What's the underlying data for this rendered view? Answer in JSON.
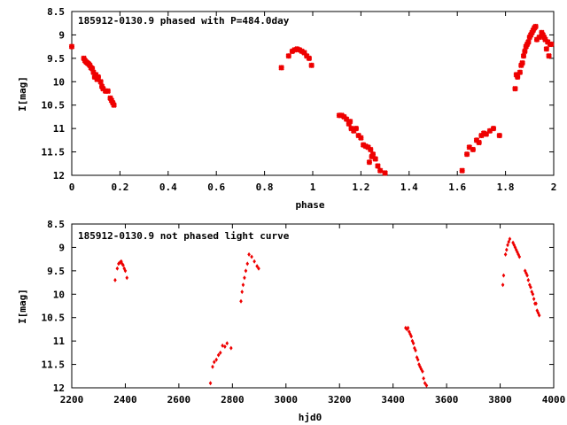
{
  "chart_data": [
    {
      "type": "scatter",
      "title": "185912-0130.9 phased with P=484.0day",
      "xlabel": "phase",
      "ylabel": "I[mag]",
      "xlim": [
        0,
        2
      ],
      "ylim": [
        8.5,
        12
      ],
      "y_inverted": true,
      "grid": false,
      "marker": "plus-cross",
      "color": "#ee0000",
      "xticks": [
        0,
        0.2,
        0.4,
        0.6,
        0.8,
        1,
        1.2,
        1.4,
        1.6,
        1.8,
        2
      ],
      "xtick_labels": [
        "0",
        "0.2",
        "0.4",
        "0.6",
        "0.8",
        "1",
        "1.2",
        "1.4",
        "1.6",
        "1.8",
        "2"
      ],
      "yticks": [
        8.5,
        9,
        9.5,
        10,
        10.5,
        11,
        11.5,
        12
      ],
      "ytick_labels": [
        "8.5",
        "9",
        "9.5",
        "10",
        "10.5",
        "11",
        "11.5",
        "12"
      ],
      "series": [
        {
          "points": [
            [
              0.0,
              9.25
            ],
            [
              0.05,
              9.5
            ],
            [
              0.055,
              9.55
            ],
            [
              0.06,
              9.58
            ],
            [
              0.065,
              9.6
            ],
            [
              0.07,
              9.62
            ],
            [
              0.075,
              9.65
            ],
            [
              0.08,
              9.7
            ],
            [
              0.085,
              9.72
            ],
            [
              0.09,
              9.8
            ],
            [
              0.095,
              9.9
            ],
            [
              0.1,
              9.85
            ],
            [
              0.105,
              9.95
            ],
            [
              0.11,
              9.9
            ],
            [
              0.12,
              10.0
            ],
            [
              0.125,
              10.1
            ],
            [
              0.13,
              10.15
            ],
            [
              0.14,
              10.2
            ],
            [
              0.15,
              10.2
            ],
            [
              0.16,
              10.35
            ],
            [
              0.165,
              10.4
            ],
            [
              0.17,
              10.45
            ],
            [
              0.175,
              10.5
            ],
            [
              0.87,
              9.7
            ],
            [
              0.9,
              9.45
            ],
            [
              0.915,
              9.35
            ],
            [
              0.925,
              9.32
            ],
            [
              0.935,
              9.3
            ],
            [
              0.945,
              9.32
            ],
            [
              0.955,
              9.35
            ],
            [
              0.965,
              9.38
            ],
            [
              0.975,
              9.45
            ],
            [
              0.985,
              9.5
            ],
            [
              0.995,
              9.65
            ],
            [
              1.11,
              10.72
            ],
            [
              1.12,
              10.72
            ],
            [
              1.13,
              10.75
            ],
            [
              1.14,
              10.8
            ],
            [
              1.15,
              10.9
            ],
            [
              1.155,
              10.85
            ],
            [
              1.16,
              11.0
            ],
            [
              1.17,
              11.05
            ],
            [
              1.18,
              11.0
            ],
            [
              1.19,
              11.15
            ],
            [
              1.2,
              11.2
            ],
            [
              1.21,
              11.35
            ],
            [
              1.22,
              11.38
            ],
            [
              1.23,
              11.4
            ],
            [
              1.24,
              11.45
            ],
            [
              1.245,
              11.6
            ],
            [
              1.25,
              11.55
            ],
            [
              1.26,
              11.65
            ],
            [
              1.27,
              11.8
            ],
            [
              1.28,
              11.9
            ],
            [
              1.3,
              11.95
            ],
            [
              1.235,
              11.72
            ],
            [
              1.62,
              11.9
            ],
            [
              1.64,
              11.55
            ],
            [
              1.65,
              11.4
            ],
            [
              1.665,
              11.45
            ],
            [
              1.68,
              11.25
            ],
            [
              1.69,
              11.3
            ],
            [
              1.7,
              11.15
            ],
            [
              1.71,
              11.1
            ],
            [
              1.72,
              11.12
            ],
            [
              1.735,
              11.05
            ],
            [
              1.75,
              11.0
            ],
            [
              1.775,
              11.15
            ],
            [
              1.84,
              10.15
            ],
            [
              1.845,
              9.85
            ],
            [
              1.85,
              9.9
            ],
            [
              1.86,
              9.8
            ],
            [
              1.865,
              9.65
            ],
            [
              1.87,
              9.6
            ],
            [
              1.875,
              9.45
            ],
            [
              1.88,
              9.35
            ],
            [
              1.885,
              9.25
            ],
            [
              1.89,
              9.2
            ],
            [
              1.895,
              9.15
            ],
            [
              1.9,
              9.05
            ],
            [
              1.905,
              9.0
            ],
            [
              1.91,
              8.95
            ],
            [
              1.915,
              8.9
            ],
            [
              1.92,
              8.85
            ],
            [
              1.925,
              8.82
            ],
            [
              1.93,
              9.1
            ],
            [
              1.94,
              9.05
            ],
            [
              1.95,
              8.95
            ],
            [
              1.955,
              9.0
            ],
            [
              1.96,
              9.05
            ],
            [
              1.965,
              9.1
            ],
            [
              1.975,
              9.15
            ],
            [
              1.985,
              9.2
            ],
            [
              1.99,
              9.2
            ],
            [
              1.97,
              9.3
            ],
            [
              1.98,
              9.45
            ]
          ]
        }
      ]
    },
    {
      "type": "scatter",
      "title": "185912-0130.9 not phased light curve",
      "xlabel": "hjd0",
      "ylabel": "I[mag]",
      "xlim": [
        2200,
        4000
      ],
      "ylim": [
        8.5,
        12
      ],
      "y_inverted": true,
      "grid": false,
      "marker": "diamond",
      "color": "#ee0000",
      "xticks": [
        2200,
        2400,
        2600,
        2800,
        3000,
        3200,
        3400,
        3600,
        3800,
        4000
      ],
      "xtick_labels": [
        "2200",
        "2400",
        "2600",
        "2800",
        "3000",
        "3200",
        "3400",
        "3600",
        "3800",
        "4000"
      ],
      "yticks": [
        8.5,
        9,
        9.5,
        10,
        10.5,
        11,
        11.5,
        12
      ],
      "ytick_labels": [
        "8.5",
        "9",
        "9.5",
        "10",
        "10.5",
        "11",
        "11.5",
        "12"
      ],
      "series": [
        {
          "points": [
            [
              2362,
              9.7
            ],
            [
              2370,
              9.45
            ],
            [
              2375,
              9.35
            ],
            [
              2380,
              9.32
            ],
            [
              2385,
              9.3
            ],
            [
              2388,
              9.35
            ],
            [
              2392,
              9.38
            ],
            [
              2396,
              9.45
            ],
            [
              2400,
              9.5
            ],
            [
              2406,
              9.65
            ],
            [
              2718,
              11.9
            ],
            [
              2726,
              11.55
            ],
            [
              2732,
              11.45
            ],
            [
              2740,
              11.4
            ],
            [
              2748,
              11.3
            ],
            [
              2755,
              11.25
            ],
            [
              2763,
              11.1
            ],
            [
              2772,
              11.12
            ],
            [
              2780,
              11.05
            ],
            [
              2795,
              11.15
            ],
            [
              2832,
              10.15
            ],
            [
              2836,
              9.95
            ],
            [
              2840,
              9.8
            ],
            [
              2845,
              9.65
            ],
            [
              2850,
              9.5
            ],
            [
              2856,
              9.35
            ],
            [
              2862,
              9.15
            ],
            [
              2872,
              9.2
            ],
            [
              2882,
              9.3
            ],
            [
              2892,
              9.4
            ],
            [
              2898,
              9.45
            ],
            [
              3447,
              10.72
            ],
            [
              3452,
              10.75
            ],
            [
              3456,
              10.72
            ],
            [
              3460,
              10.8
            ],
            [
              3464,
              10.85
            ],
            [
              3468,
              10.9
            ],
            [
              3472,
              11.0
            ],
            [
              3476,
              11.05
            ],
            [
              3480,
              11.15
            ],
            [
              3484,
              11.2
            ],
            [
              3489,
              11.35
            ],
            [
              3493,
              11.4
            ],
            [
              3497,
              11.5
            ],
            [
              3501,
              11.55
            ],
            [
              3505,
              11.6
            ],
            [
              3510,
              11.65
            ],
            [
              3514,
              11.8
            ],
            [
              3519,
              11.9
            ],
            [
              3525,
              11.95
            ],
            [
              3810,
              9.8
            ],
            [
              3813,
              9.6
            ],
            [
              3820,
              9.15
            ],
            [
              3824,
              9.05
            ],
            [
              3828,
              8.95
            ],
            [
              3832,
              8.88
            ],
            [
              3836,
              8.82
            ],
            [
              3848,
              8.9
            ],
            [
              3852,
              8.95
            ],
            [
              3856,
              9.0
            ],
            [
              3860,
              9.05
            ],
            [
              3864,
              9.1
            ],
            [
              3868,
              9.15
            ],
            [
              3872,
              9.2
            ],
            [
              3893,
              9.5
            ],
            [
              3897,
              9.55
            ],
            [
              3901,
              9.6
            ],
            [
              3905,
              9.7
            ],
            [
              3910,
              9.8
            ],
            [
              3914,
              9.85
            ],
            [
              3918,
              9.95
            ],
            [
              3922,
              10.0
            ],
            [
              3926,
              10.1
            ],
            [
              3930,
              10.2
            ],
            [
              3934,
              10.2
            ],
            [
              3938,
              10.35
            ],
            [
              3942,
              10.4
            ],
            [
              3946,
              10.45
            ]
          ]
        }
      ]
    }
  ]
}
